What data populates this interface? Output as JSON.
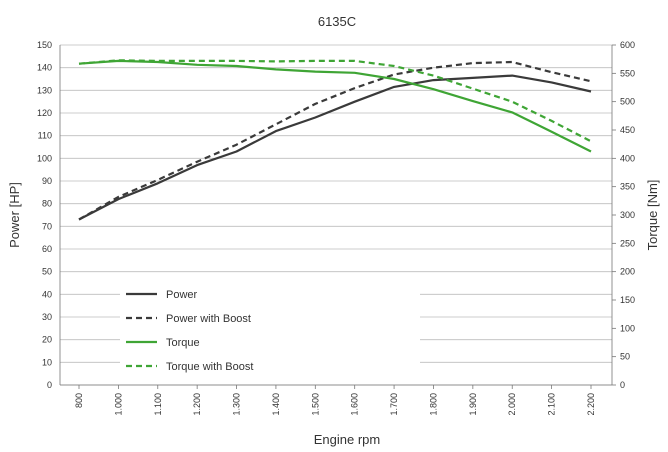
{
  "chart_data": {
    "type": "line",
    "title": "6135C",
    "xlabel": "Engine rpm",
    "ylabel_left": "Power [HP]",
    "ylabel_right": "Torque [Nm]",
    "categories": [
      "800",
      "1.000",
      "1.100",
      "1.200",
      "1.300",
      "1.400",
      "1.500",
      "1.600",
      "1.700",
      "1.800",
      "1.900",
      "2.000",
      "2.100",
      "2.200"
    ],
    "y_left_ticks": [
      "0",
      "10",
      "20",
      "30",
      "40",
      "50",
      "60",
      "70",
      "80",
      "90",
      "100",
      "110",
      "120",
      "130",
      "140",
      "150"
    ],
    "y_right_ticks": [
      "0",
      "50",
      "100",
      "150",
      "200",
      "250",
      "300",
      "350",
      "400",
      "450",
      "500",
      "550",
      "600"
    ],
    "ylim_left": [
      0,
      150
    ],
    "ylim_right": [
      0,
      600
    ],
    "grid": "horizontal",
    "legend_position": "bottom-left",
    "series": [
      {
        "name": "Power",
        "axis": "left",
        "color": "#3a3a3a",
        "dash": "solid",
        "values": [
          73,
          82,
          89,
          97,
          103,
          112,
          118,
          125,
          131.5,
          134.5,
          135.5,
          136.5,
          133.5,
          129.5
        ]
      },
      {
        "name": "Power with Boost",
        "axis": "left",
        "color": "#3a3a3a",
        "dash": "dashed",
        "values": [
          73,
          83,
          90.5,
          98.5,
          106,
          115,
          124,
          131,
          137,
          140,
          142,
          142.5,
          138,
          134
        ]
      },
      {
        "name": "Torque",
        "axis": "right",
        "color": "#3fa535",
        "dash": "solid",
        "values": [
          567,
          572,
          570,
          565,
          563,
          557,
          553,
          551,
          540,
          522,
          501,
          481,
          447,
          412
        ]
      },
      {
        "name": "Torque with Boost",
        "axis": "right",
        "color": "#3fa535",
        "dash": "dashed",
        "values": [
          567,
          573,
          572,
          572,
          572,
          571,
          572,
          572,
          563,
          546,
          523,
          500,
          466,
          430
        ]
      }
    ]
  }
}
